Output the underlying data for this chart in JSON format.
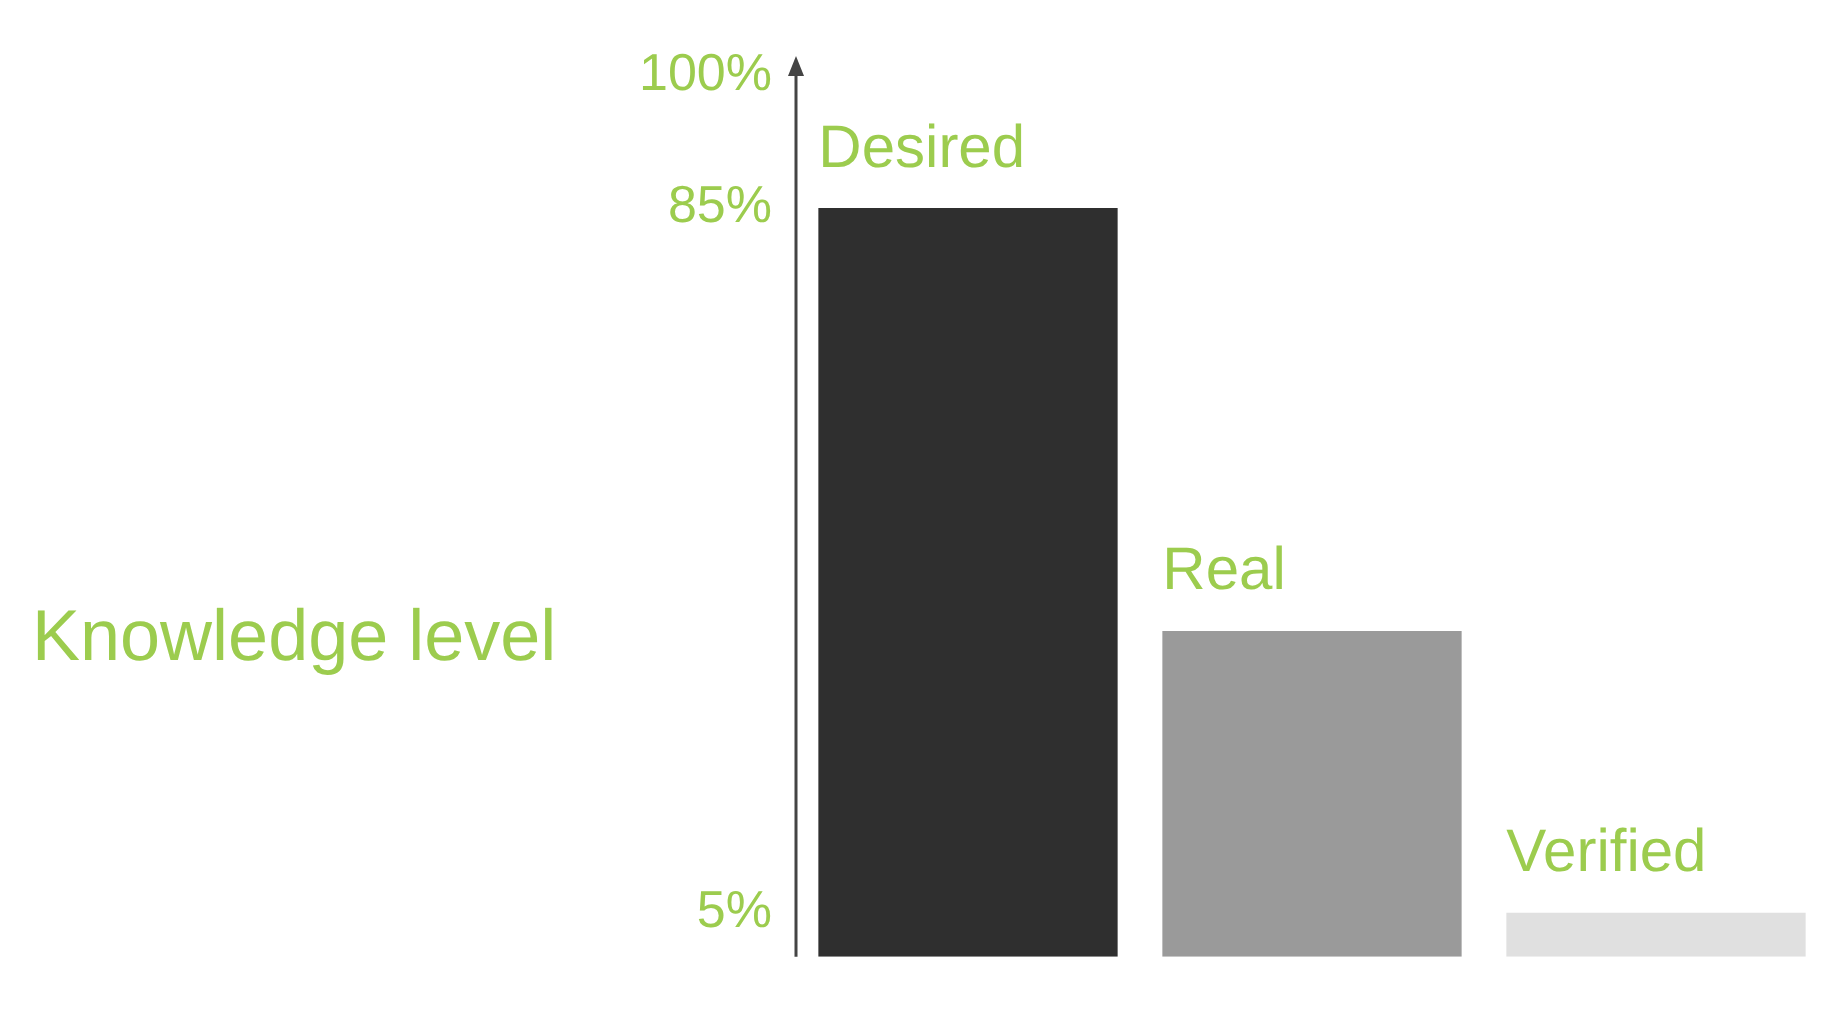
{
  "chart_data": {
    "type": "bar",
    "ylabel": "Knowledge level",
    "categories": [
      "Desired",
      "Real",
      "Verified"
    ],
    "values": [
      85,
      37,
      5
    ],
    "colors": [
      "#2f2f2f",
      "#9a9a9a",
      "#e0e0e0"
    ],
    "ylim": [
      0,
      100
    ],
    "yticks": [
      {
        "value": 5,
        "label": "5%"
      },
      {
        "value": 85,
        "label": "85%"
      },
      {
        "value": 100,
        "label": "100%"
      }
    ],
    "grid": false,
    "legend": false
  }
}
